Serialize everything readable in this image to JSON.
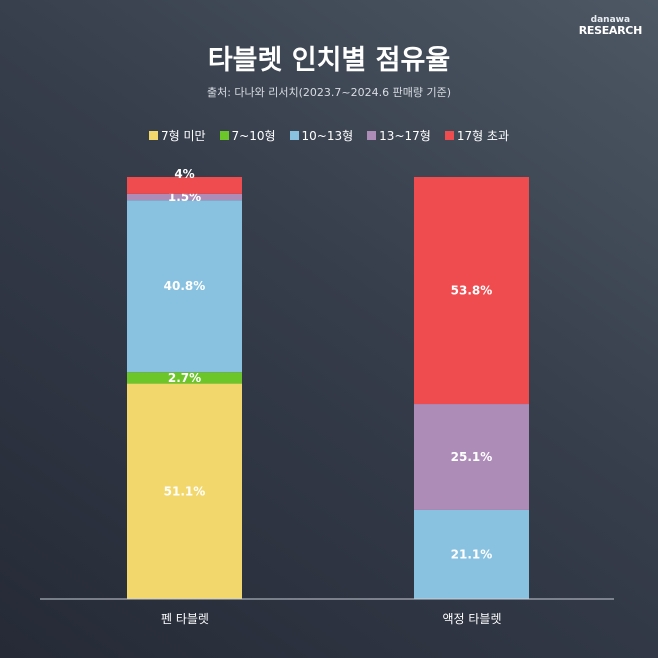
{
  "logo": {
    "small": "danawa",
    "big": "RESEARCH"
  },
  "title": "타블렛 인치별 점유율",
  "subtitle": "출처: 다나와 리서치(2023.7~2024.6 판매량 기준)",
  "chart_data": {
    "type": "bar",
    "stacked": true,
    "title": "타블렛 인치별 점유율",
    "categories": [
      "펜 타블렛",
      "액정 타블렛"
    ],
    "legend_position": "top",
    "series": [
      {
        "name": "7형 미만",
        "color": "#f2d86c",
        "values": [
          51.1,
          0
        ],
        "labels": [
          "51.1%",
          ""
        ]
      },
      {
        "name": "7~10형",
        "color": "#6cc62a",
        "values": [
          2.7,
          0
        ],
        "labels": [
          "2.7%",
          ""
        ]
      },
      {
        "name": "10~13형",
        "color": "#88c2e0",
        "values": [
          40.8,
          21.1
        ],
        "labels": [
          "40.8%",
          "21.1%"
        ]
      },
      {
        "name": "13~17형",
        "color": "#ad8cb8",
        "values": [
          1.5,
          25.1
        ],
        "labels": [
          "1.5%",
          "25.1%"
        ]
      },
      {
        "name": "17형 초과",
        "color": "#ef4c4f",
        "values": [
          4,
          53.8
        ],
        "labels": [
          "4%",
          "53.8%"
        ]
      }
    ],
    "ylim": [
      0,
      100
    ]
  }
}
